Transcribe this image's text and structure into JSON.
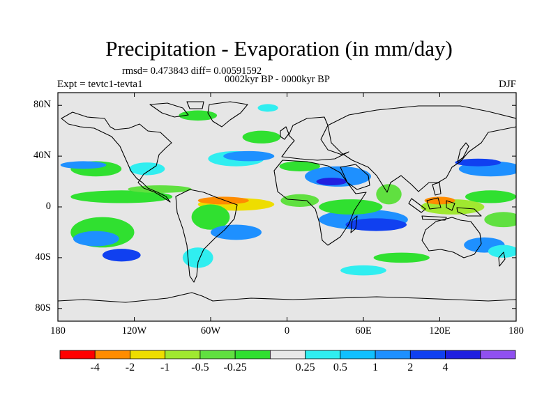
{
  "title": "Precipitation - Evaporation (in mm/day)",
  "stats": "rmsd= 0.473843 diff= 0.00591592",
  "subtitle": "0002kyr BP - 0000kyr BP",
  "experiment": "Expt = tevtc1-tevta1",
  "season": "DJF",
  "y_axis": {
    "labels": [
      "80N",
      "40N",
      "0",
      "40S",
      "80S"
    ],
    "values": [
      80,
      40,
      0,
      -40,
      -80
    ],
    "range": [
      -90,
      90
    ]
  },
  "x_axis": {
    "labels": [
      "180",
      "120W",
      "60W",
      "0",
      "60E",
      "120E",
      "180"
    ],
    "values": [
      -180,
      -120,
      -60,
      0,
      60,
      120,
      180
    ],
    "range": [
      -180,
      180
    ]
  },
  "colorbar": {
    "colors": [
      "#ff0000",
      "#ff8c00",
      "#eedd00",
      "#a0e830",
      "#60e040",
      "#30e030",
      "#e8e8e8",
      "#30eef0",
      "#10c0ff",
      "#1e90ff",
      "#1040f0",
      "#2020e0",
      "#9050f0"
    ],
    "labels": [
      "-4",
      "-2",
      "-1",
      "-0.5",
      "-0.25",
      "0.25",
      "0.5",
      "1",
      "2",
      "4"
    ]
  },
  "anomaly_patches": [
    {
      "lon": -130,
      "lat": 8,
      "rx": 40,
      "ry": 5,
      "level": "-0.25"
    },
    {
      "lon": -150,
      "lat": 30,
      "rx": 20,
      "ry": 6,
      "level": "-0.25"
    },
    {
      "lon": -160,
      "lat": 33,
      "rx": 18,
      "ry": 3,
      "level": "1"
    },
    {
      "lon": -100,
      "lat": 14,
      "rx": 25,
      "ry": 3,
      "level": "-0.5"
    },
    {
      "lon": -110,
      "lat": 30,
      "rx": 14,
      "ry": 5,
      "level": "0.25"
    },
    {
      "lon": -40,
      "lat": 2,
      "rx": 30,
      "ry": 5,
      "level": "-2"
    },
    {
      "lon": -50,
      "lat": 5,
      "rx": 20,
      "ry": 3,
      "level": "-4"
    },
    {
      "lon": -60,
      "lat": -8,
      "rx": 15,
      "ry": 10,
      "level": "-0.25"
    },
    {
      "lon": -40,
      "lat": -20,
      "rx": 20,
      "ry": 6,
      "level": "1"
    },
    {
      "lon": -70,
      "lat": -40,
      "rx": 12,
      "ry": 8,
      "level": "0.25"
    },
    {
      "lon": -145,
      "lat": -20,
      "rx": 25,
      "ry": 12,
      "level": "-0.25"
    },
    {
      "lon": -150,
      "lat": -25,
      "rx": 18,
      "ry": 6,
      "level": "1"
    },
    {
      "lon": -130,
      "lat": -38,
      "rx": 15,
      "ry": 5,
      "level": "2"
    },
    {
      "lon": -40,
      "lat": 38,
      "rx": 22,
      "ry": 6,
      "level": "0.25"
    },
    {
      "lon": -30,
      "lat": 40,
      "rx": 20,
      "ry": 4,
      "level": "1"
    },
    {
      "lon": -20,
      "lat": 55,
      "rx": 15,
      "ry": 5,
      "level": "-0.25"
    },
    {
      "lon": 10,
      "lat": 32,
      "rx": 16,
      "ry": 4,
      "level": "-0.25"
    },
    {
      "lon": 40,
      "lat": 24,
      "rx": 26,
      "ry": 8,
      "level": "1"
    },
    {
      "lon": 35,
      "lat": 20,
      "rx": 12,
      "ry": 3,
      "level": "4"
    },
    {
      "lon": 10,
      "lat": 5,
      "rx": 15,
      "ry": 5,
      "level": "-0.5"
    },
    {
      "lon": 60,
      "lat": -10,
      "rx": 35,
      "ry": 8,
      "level": "1"
    },
    {
      "lon": 70,
      "lat": -14,
      "rx": 24,
      "ry": 5,
      "level": "2"
    },
    {
      "lon": 50,
      "lat": 0,
      "rx": 25,
      "ry": 6,
      "level": "-0.25"
    },
    {
      "lon": 80,
      "lat": 10,
      "rx": 10,
      "ry": 8,
      "level": "-0.5"
    },
    {
      "lon": 130,
      "lat": 0,
      "rx": 25,
      "ry": 6,
      "level": "-1"
    },
    {
      "lon": 120,
      "lat": 5,
      "rx": 12,
      "ry": 3,
      "level": "-4"
    },
    {
      "lon": 160,
      "lat": 30,
      "rx": 25,
      "ry": 6,
      "level": "1"
    },
    {
      "lon": 150,
      "lat": 35,
      "rx": 18,
      "ry": 3,
      "level": "2"
    },
    {
      "lon": 160,
      "lat": 8,
      "rx": 20,
      "ry": 5,
      "level": "-0.25"
    },
    {
      "lon": 170,
      "lat": -10,
      "rx": 15,
      "ry": 6,
      "level": "-0.5"
    },
    {
      "lon": 155,
      "lat": -30,
      "rx": 16,
      "ry": 6,
      "level": "1"
    },
    {
      "lon": 170,
      "lat": -35,
      "rx": 12,
      "ry": 5,
      "level": "0.25"
    },
    {
      "lon": 90,
      "lat": -40,
      "rx": 22,
      "ry": 4,
      "level": "-0.25"
    },
    {
      "lon": 60,
      "lat": -50,
      "rx": 18,
      "ry": 4,
      "level": "0.25"
    },
    {
      "lon": -70,
      "lat": 72,
      "rx": 15,
      "ry": 4,
      "level": "-0.25"
    },
    {
      "lon": -15,
      "lat": 78,
      "rx": 8,
      "ry": 3,
      "level": "0.25"
    }
  ]
}
